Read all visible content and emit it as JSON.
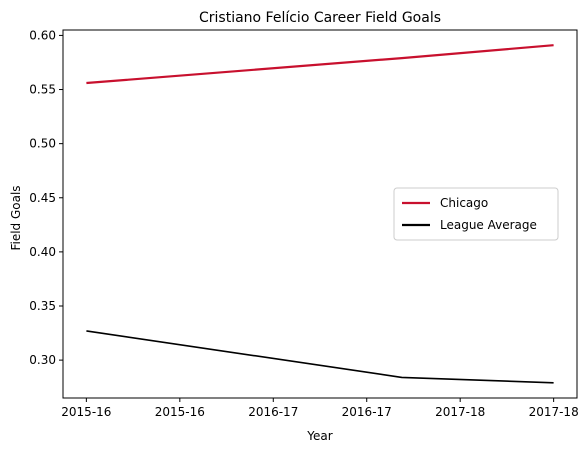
{
  "chart_data": {
    "type": "line",
    "title": "Cristiano Felício Career Field Goals",
    "xlabel": "Year",
    "ylabel": "Field Goals",
    "x": [
      0,
      1.35,
      2.0
    ],
    "xlim": [
      -0.1,
      2.1
    ],
    "xticks": [
      {
        "pos": 0.0,
        "label": "2015-16"
      },
      {
        "pos": 0.4,
        "label": "2015-16"
      },
      {
        "pos": 0.8,
        "label": "2016-17"
      },
      {
        "pos": 1.2,
        "label": "2016-17"
      },
      {
        "pos": 1.6,
        "label": "2017-18"
      },
      {
        "pos": 2.0,
        "label": "2017-18"
      }
    ],
    "ylim": [
      0.265,
      0.605
    ],
    "yticks": [
      0.3,
      0.35,
      0.4,
      0.45,
      0.5,
      0.55,
      0.6
    ],
    "ytick_labels": [
      "0.30",
      "0.35",
      "0.40",
      "0.45",
      "0.50",
      "0.55",
      "0.60"
    ],
    "grid": false,
    "legend_position": "center-right",
    "series": [
      {
        "name": "Chicago",
        "color": "#c8102e",
        "values": [
          0.556,
          0.579,
          0.591
        ]
      },
      {
        "name": "League Average",
        "color": "#000000",
        "values": [
          0.327,
          0.284,
          0.279
        ]
      }
    ]
  }
}
